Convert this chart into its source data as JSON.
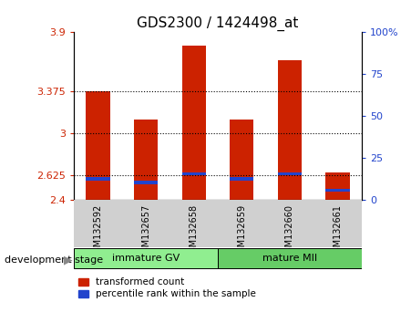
{
  "title": "GDS2300 / 1424498_at",
  "samples": [
    "GSM132592",
    "GSM132657",
    "GSM132658",
    "GSM132659",
    "GSM132660",
    "GSM132661"
  ],
  "red_values": [
    3.37,
    3.12,
    3.78,
    3.12,
    3.65,
    2.65
  ],
  "blue_values": [
    2.59,
    2.56,
    2.635,
    2.59,
    2.635,
    2.49
  ],
  "baseline": 2.4,
  "ylim_left": [
    2.4,
    3.9
  ],
  "ylim_right": [
    0,
    100
  ],
  "yticks_left": [
    2.4,
    2.625,
    3.0,
    3.375,
    3.9
  ],
  "ytick_labels_left": [
    "2.4",
    "2.625",
    "3",
    "3.375",
    "3.9"
  ],
  "yticks_right": [
    0,
    25,
    50,
    75,
    100
  ],
  "ytick_labels_right": [
    "0",
    "25",
    "50",
    "75",
    "100%"
  ],
  "hlines": [
    3.375,
    3.0,
    2.625
  ],
  "group_labels": [
    "immature GV",
    "mature MII"
  ],
  "group_ranges": [
    [
      0,
      3
    ],
    [
      3,
      6
    ]
  ],
  "group_colors": [
    "#90ee90",
    "#66cc66"
  ],
  "bar_width": 0.5,
  "bar_color_red": "#cc2200",
  "bar_color_blue": "#2244cc",
  "background_plot": "#ffffff",
  "background_label": "#d0d0d0",
  "development_label": "development stage"
}
